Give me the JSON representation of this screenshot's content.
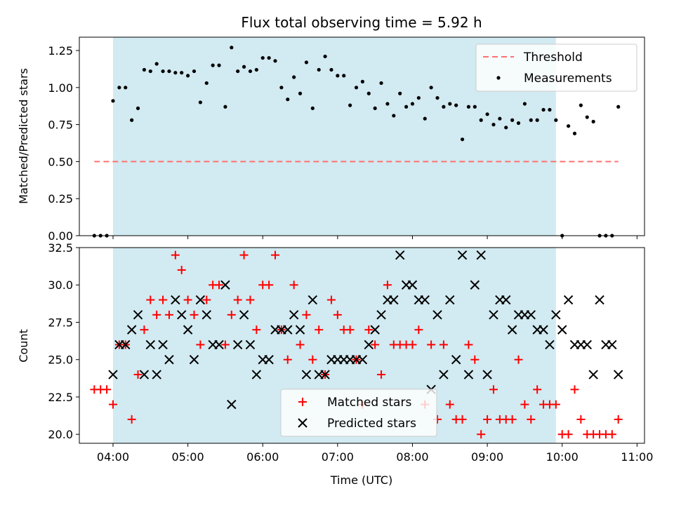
{
  "chart_data": [
    {
      "type": "scatter",
      "title": "Flux total observing time = 5.92 h",
      "ylabel": "Matched/Predicted stars",
      "xlabel": "",
      "xlim": [
        "03:33",
        "11:06"
      ],
      "ylim": [
        0,
        1.34
      ],
      "yticks": [
        "0.00",
        "0.25",
        "0.50",
        "0.75",
        "1.00",
        "1.25"
      ],
      "shaded_span": [
        "04:00",
        "09:55"
      ],
      "shade_color": "#add8e6",
      "threshold": {
        "name": "Threshold",
        "value": 0.5,
        "x_range": [
          "03:45",
          "10:45"
        ],
        "color": "#ff7070"
      },
      "legend": {
        "placement": "upper right",
        "entries": [
          "Threshold",
          "Measurements"
        ]
      },
      "series": [
        {
          "name": "Measurements",
          "marker": "dot",
          "color": "#000000",
          "x": [
            "03:45",
            "03:50",
            "03:55",
            "04:00",
            "04:05",
            "04:10",
            "04:15",
            "04:20",
            "04:25",
            "04:30",
            "04:35",
            "04:40",
            "04:45",
            "04:50",
            "04:55",
            "05:00",
            "05:05",
            "05:10",
            "05:15",
            "05:20",
            "05:25",
            "05:30",
            "05:35",
            "05:40",
            "05:45",
            "05:50",
            "05:55",
            "06:00",
            "06:05",
            "06:10",
            "06:15",
            "06:20",
            "06:25",
            "06:30",
            "06:35",
            "06:40",
            "06:45",
            "06:50",
            "06:55",
            "07:00",
            "07:05",
            "07:10",
            "07:15",
            "07:20",
            "07:25",
            "07:30",
            "07:35",
            "07:40",
            "07:45",
            "07:50",
            "07:55",
            "08:00",
            "08:05",
            "08:10",
            "08:15",
            "08:20",
            "08:25",
            "08:30",
            "08:35",
            "08:40",
            "08:45",
            "08:50",
            "08:55",
            "09:00",
            "09:05",
            "09:10",
            "09:15",
            "09:20",
            "09:25",
            "09:30",
            "09:35",
            "09:40",
            "09:45",
            "09:50",
            "09:55",
            "10:00",
            "10:05",
            "10:10",
            "10:15",
            "10:20",
            "10:25",
            "10:30",
            "10:35",
            "10:40",
            "10:45"
          ],
          "y": [
            0,
            0,
            0,
            0.91,
            1.0,
            1.0,
            0.78,
            0.86,
            1.12,
            1.11,
            1.16,
            1.11,
            1.11,
            1.1,
            1.1,
            1.08,
            1.11,
            0.9,
            1.03,
            1.15,
            1.15,
            0.87,
            1.27,
            1.11,
            1.14,
            1.11,
            1.12,
            1.2,
            1.2,
            1.18,
            1.0,
            0.92,
            1.07,
            0.96,
            1.17,
            0.86,
            1.12,
            1.21,
            1.12,
            1.08,
            1.08,
            0.88,
            1.0,
            1.04,
            0.96,
            0.86,
            1.03,
            0.89,
            0.81,
            0.96,
            0.87,
            0.89,
            0.93,
            0.79,
            1.0,
            0.93,
            0.87,
            0.89,
            0.88,
            0.65,
            0.87,
            0.87,
            0.78,
            0.82,
            0.75,
            0.79,
            0.73,
            0.78,
            0.76,
            0.89,
            0.78,
            0.78,
            0.85,
            0.85,
            0.78,
            0,
            0.74,
            0.69,
            0.88,
            0.8,
            0.77,
            0,
            0,
            0,
            0.87
          ]
        }
      ]
    },
    {
      "type": "scatter",
      "title": "",
      "xlabel": "Time (UTC)",
      "ylabel": "Count",
      "xlim": [
        "03:33",
        "11:06"
      ],
      "ylim": [
        19.4,
        32.5
      ],
      "xticks": [
        "04:00",
        "05:00",
        "06:00",
        "07:00",
        "08:00",
        "09:00",
        "10:00",
        "11:00"
      ],
      "yticks": [
        "20.0",
        "22.5",
        "25.0",
        "27.5",
        "30.0",
        "32.5"
      ],
      "shaded_span": [
        "04:00",
        "09:55"
      ],
      "shade_color": "#add8e6",
      "legend": {
        "placement": "lower center",
        "entries": [
          "Matched stars",
          "Predicted stars"
        ]
      },
      "series": [
        {
          "name": "Matched stars",
          "marker": "plus",
          "color": "#ff0000",
          "x": [
            "03:45",
            "03:50",
            "03:55",
            "04:00",
            "04:05",
            "04:10",
            "04:15",
            "04:20",
            "04:25",
            "04:30",
            "04:35",
            "04:40",
            "04:45",
            "04:50",
            "04:55",
            "05:00",
            "05:05",
            "05:10",
            "05:15",
            "05:20",
            "05:25",
            "05:30",
            "05:35",
            "05:40",
            "05:45",
            "05:50",
            "05:55",
            "06:00",
            "06:05",
            "06:10",
            "06:15",
            "06:20",
            "06:25",
            "06:30",
            "06:35",
            "06:40",
            "06:45",
            "06:50",
            "06:55",
            "07:00",
            "07:05",
            "07:10",
            "07:15",
            "07:20",
            "07:25",
            "07:30",
            "07:35",
            "07:40",
            "07:45",
            "07:50",
            "07:55",
            "08:00",
            "08:05",
            "08:10",
            "08:15",
            "08:20",
            "08:25",
            "08:30",
            "08:35",
            "08:40",
            "08:45",
            "08:50",
            "08:55",
            "09:00",
            "09:05",
            "09:10",
            "09:15",
            "09:20",
            "09:25",
            "09:30",
            "09:35",
            "09:40",
            "09:45",
            "09:50",
            "09:55",
            "10:00",
            "10:05",
            "10:10",
            "10:15",
            "10:20",
            "10:25",
            "10:30",
            "10:35",
            "10:40",
            "10:45"
          ],
          "y": [
            23,
            23,
            23,
            22,
            26,
            26,
            21,
            24,
            27,
            29,
            28,
            29,
            28,
            32,
            31,
            29,
            28,
            26,
            29,
            30,
            30,
            26,
            28,
            29,
            32,
            29,
            27,
            30,
            30,
            32,
            27,
            25,
            30,
            26,
            28,
            25,
            27,
            24,
            29,
            28,
            27,
            27,
            25,
            22,
            27,
            26,
            24,
            30,
            26,
            26,
            26,
            26,
            27,
            22,
            26,
            21,
            26,
            22,
            21,
            21,
            26,
            25,
            20,
            21,
            23,
            21,
            21,
            21,
            25,
            22,
            21,
            23,
            22,
            22,
            22,
            20,
            20,
            23,
            21,
            20,
            20,
            20,
            20,
            20,
            21
          ]
        },
        {
          "name": "Predicted stars",
          "marker": "x",
          "color": "#000000",
          "x": [
            "04:00",
            "04:05",
            "04:10",
            "04:15",
            "04:20",
            "04:25",
            "04:30",
            "04:35",
            "04:40",
            "04:45",
            "04:50",
            "04:55",
            "05:00",
            "05:05",
            "05:10",
            "05:15",
            "05:20",
            "05:25",
            "05:30",
            "05:35",
            "05:40",
            "05:45",
            "05:50",
            "05:55",
            "06:00",
            "06:05",
            "06:10",
            "06:15",
            "06:20",
            "06:25",
            "06:30",
            "06:35",
            "06:40",
            "06:45",
            "06:50",
            "06:55",
            "07:00",
            "07:05",
            "07:10",
            "07:15",
            "07:20",
            "07:25",
            "07:30",
            "07:35",
            "07:40",
            "07:45",
            "07:50",
            "07:55",
            "08:00",
            "08:05",
            "08:10",
            "08:15",
            "08:20",
            "08:25",
            "08:30",
            "08:35",
            "08:40",
            "08:45",
            "08:50",
            "08:55",
            "09:00",
            "09:05",
            "09:10",
            "09:15",
            "09:20",
            "09:25",
            "09:30",
            "09:35",
            "09:40",
            "09:45",
            "09:50",
            "09:55",
            "10:00",
            "10:05",
            "10:10",
            "10:15",
            "10:20",
            "10:25",
            "10:30",
            "10:35",
            "10:40",
            "10:45"
          ],
          "y": [
            24,
            26,
            26,
            27,
            28,
            24,
            26,
            24,
            26,
            25,
            29,
            28,
            27,
            25,
            29,
            28,
            26,
            26,
            30,
            22,
            26,
            28,
            26,
            24,
            25,
            25,
            27,
            27,
            27,
            28,
            27,
            24,
            29,
            24,
            24,
            25,
            25,
            25,
            25,
            25,
            25,
            26,
            27,
            28,
            29,
            29,
            32,
            30,
            30,
            29,
            29,
            23,
            28,
            24,
            29,
            25,
            32,
            24,
            30,
            32,
            24,
            28,
            29,
            29,
            27,
            28,
            28,
            28,
            27,
            27,
            26,
            28,
            27,
            29,
            26,
            26,
            26,
            24,
            29,
            26,
            26,
            24
          ]
        }
      ]
    }
  ]
}
